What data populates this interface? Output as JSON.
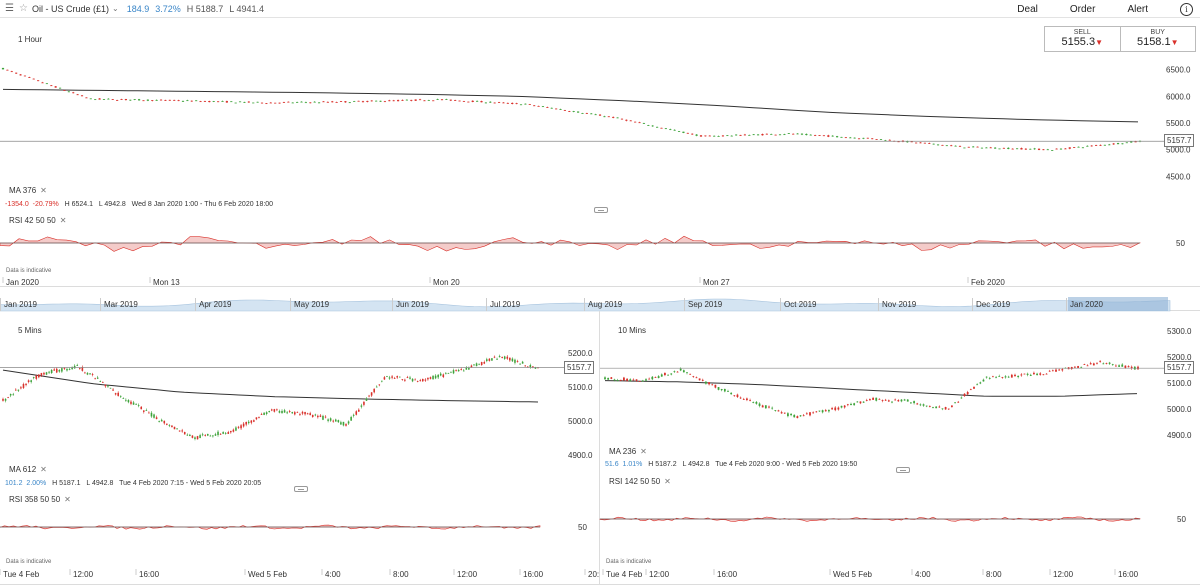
{
  "header": {
    "instrument": "Oil - US Crude (£1)",
    "change": "184.9",
    "change_pct": "3.72%",
    "high": "H 5188.7",
    "low": "L 4941.4",
    "actions": {
      "deal": "Deal",
      "order": "Order",
      "alert": "Alert"
    }
  },
  "quote": {
    "sell_label": "SELL",
    "sell_value": "5155.3",
    "buy_label": "BUY",
    "buy_value": "5158.1"
  },
  "colors": {
    "up": "#3ea33b",
    "down": "#d9302a",
    "accent": "#3a86c8",
    "ma": "#333333",
    "rsi_fill_down": "#f0b5b2",
    "rsi_fill_up": "#bfe3b9"
  },
  "chart_1h": {
    "timeframe": "1 Hour",
    "ma_label": "MA",
    "ma_value": "376",
    "change": "-1354.0",
    "change_pct": "-20.79%",
    "high": "H 6524.1",
    "low": "L 4942.8",
    "range": "Wed 8 Jan 2020 1:00 - Thu 6 Feb 2020 18:00",
    "rsi_label": "RSI",
    "rsi_params": "42 50 50",
    "disclaimer": "Data is indicative",
    "current_price": "5157.7",
    "rsi_level": "50",
    "x_labels": [
      "Jan 2020",
      "Mon 13",
      "Mon 20",
      "Mon 27",
      "Feb 2020"
    ]
  },
  "navigator": {
    "months": [
      "Jan 2019",
      "Mar 2019",
      "Apr 2019",
      "May 2019",
      "Jun 2019",
      "Jul 2019",
      "Aug 2019",
      "Sep 2019",
      "Oct 2019",
      "Nov 2019",
      "Dec 2019",
      "Jan 2020"
    ]
  },
  "chart_5m": {
    "timeframe": "5 Mins",
    "ma_label": "MA",
    "ma_value": "612",
    "change": "101.2",
    "change_pct": "2.00%",
    "high": "H 5187.1",
    "low": "L 4942.8",
    "range": "Tue 4 Feb 2020 7:15 - Wed 5 Feb 2020 20:05",
    "rsi_label": "RSI",
    "rsi_params": "358 50 50",
    "disclaimer": "Data is indicative",
    "current_price": "5157.7",
    "rsi_level": "50",
    "x_labels": [
      "Tue 4 Feb",
      "12:00",
      "16:00",
      "Wed 5 Feb",
      "4:00",
      "8:00",
      "12:00",
      "16:00",
      "20:"
    ]
  },
  "chart_10m": {
    "timeframe": "10 Mins",
    "ma_label": "MA",
    "ma_value": "236",
    "change": "51.6",
    "change_pct": "1.01%",
    "high": "H 5187.2",
    "low": "L 4942.8",
    "range": "Tue 4 Feb 2020 9:00 - Wed 5 Feb 2020 19:50",
    "rsi_label": "RSI",
    "rsi_params": "142 50 50",
    "disclaimer": "Data is indicative",
    "current_price": "5157.7",
    "rsi_level": "50",
    "x_labels": [
      "Tue 4 Feb",
      "12:00",
      "16:00",
      "Wed 5 Feb",
      "4:00",
      "8:00",
      "12:00",
      "16:00"
    ]
  },
  "chart_data": [
    {
      "type": "line",
      "title": "1 Hour",
      "y_ticks": [
        4500,
        5000,
        5500,
        6000,
        6500
      ],
      "ylim": [
        4300,
        6700
      ],
      "x_tick_labels": [
        "Jan 2020",
        "Mon 13",
        "Mon 20",
        "Mon 27",
        "Feb 2020"
      ],
      "series": [
        {
          "name": "MA 376",
          "values": [
            6130,
            6110,
            6090,
            6070,
            6040,
            6000,
            5920,
            5820,
            5700,
            5620,
            5560,
            5520
          ]
        },
        {
          "name": "",
          "values": [
            6520,
            5950,
            5920,
            5880,
            5900,
            5940,
            5850,
            5600,
            5250,
            5300,
            5200,
            5050,
            5000,
            5157
          ]
        }
      ],
      "last_price": 5157.7,
      "grid": false
    },
    {
      "type": "line",
      "title": "5 Mins",
      "y_ticks": [
        4900,
        5000,
        5100,
        5200
      ],
      "ylim": [
        4870,
        5230
      ],
      "x_tick_labels": [
        "Tue 4 Feb",
        "12:00",
        "16:00",
        "Wed 5 Feb",
        "4:00",
        "8:00",
        "12:00",
        "16:00",
        "20:"
      ],
      "series": [
        {
          "name": "MA 612",
          "values": [
            5150,
            5110,
            5085,
            5072,
            5065,
            5060,
            5056
          ]
        },
        {
          "name": "",
          "values": [
            5060,
            5140,
            5160,
            5080,
            5010,
            4950,
            4970,
            5030,
            5020,
            4990,
            5130,
            5120,
            5150,
            5190,
            5157
          ]
        }
      ],
      "last_price": 5157.7,
      "grid": false
    },
    {
      "type": "line",
      "title": "10 Mins",
      "y_ticks": [
        4900,
        5000,
        5100,
        5200,
        5300
      ],
      "ylim": [
        4870,
        5320
      ],
      "x_tick_labels": [
        "Tue 4 Feb",
        "12:00",
        "16:00",
        "Wed 5 Feb",
        "4:00",
        "8:00",
        "12:00",
        "16:00"
      ],
      "series": [
        {
          "name": "MA 236",
          "values": [
            5110,
            5105,
            5095,
            5080,
            5065,
            5050,
            5050,
            5060
          ]
        },
        {
          "name": "",
          "values": [
            5120,
            5110,
            5150,
            5080,
            5020,
            4970,
            5000,
            5040,
            5030,
            5000,
            5120,
            5130,
            5150,
            5180,
            5157
          ]
        }
      ],
      "last_price": 5157.7,
      "grid": false
    }
  ]
}
